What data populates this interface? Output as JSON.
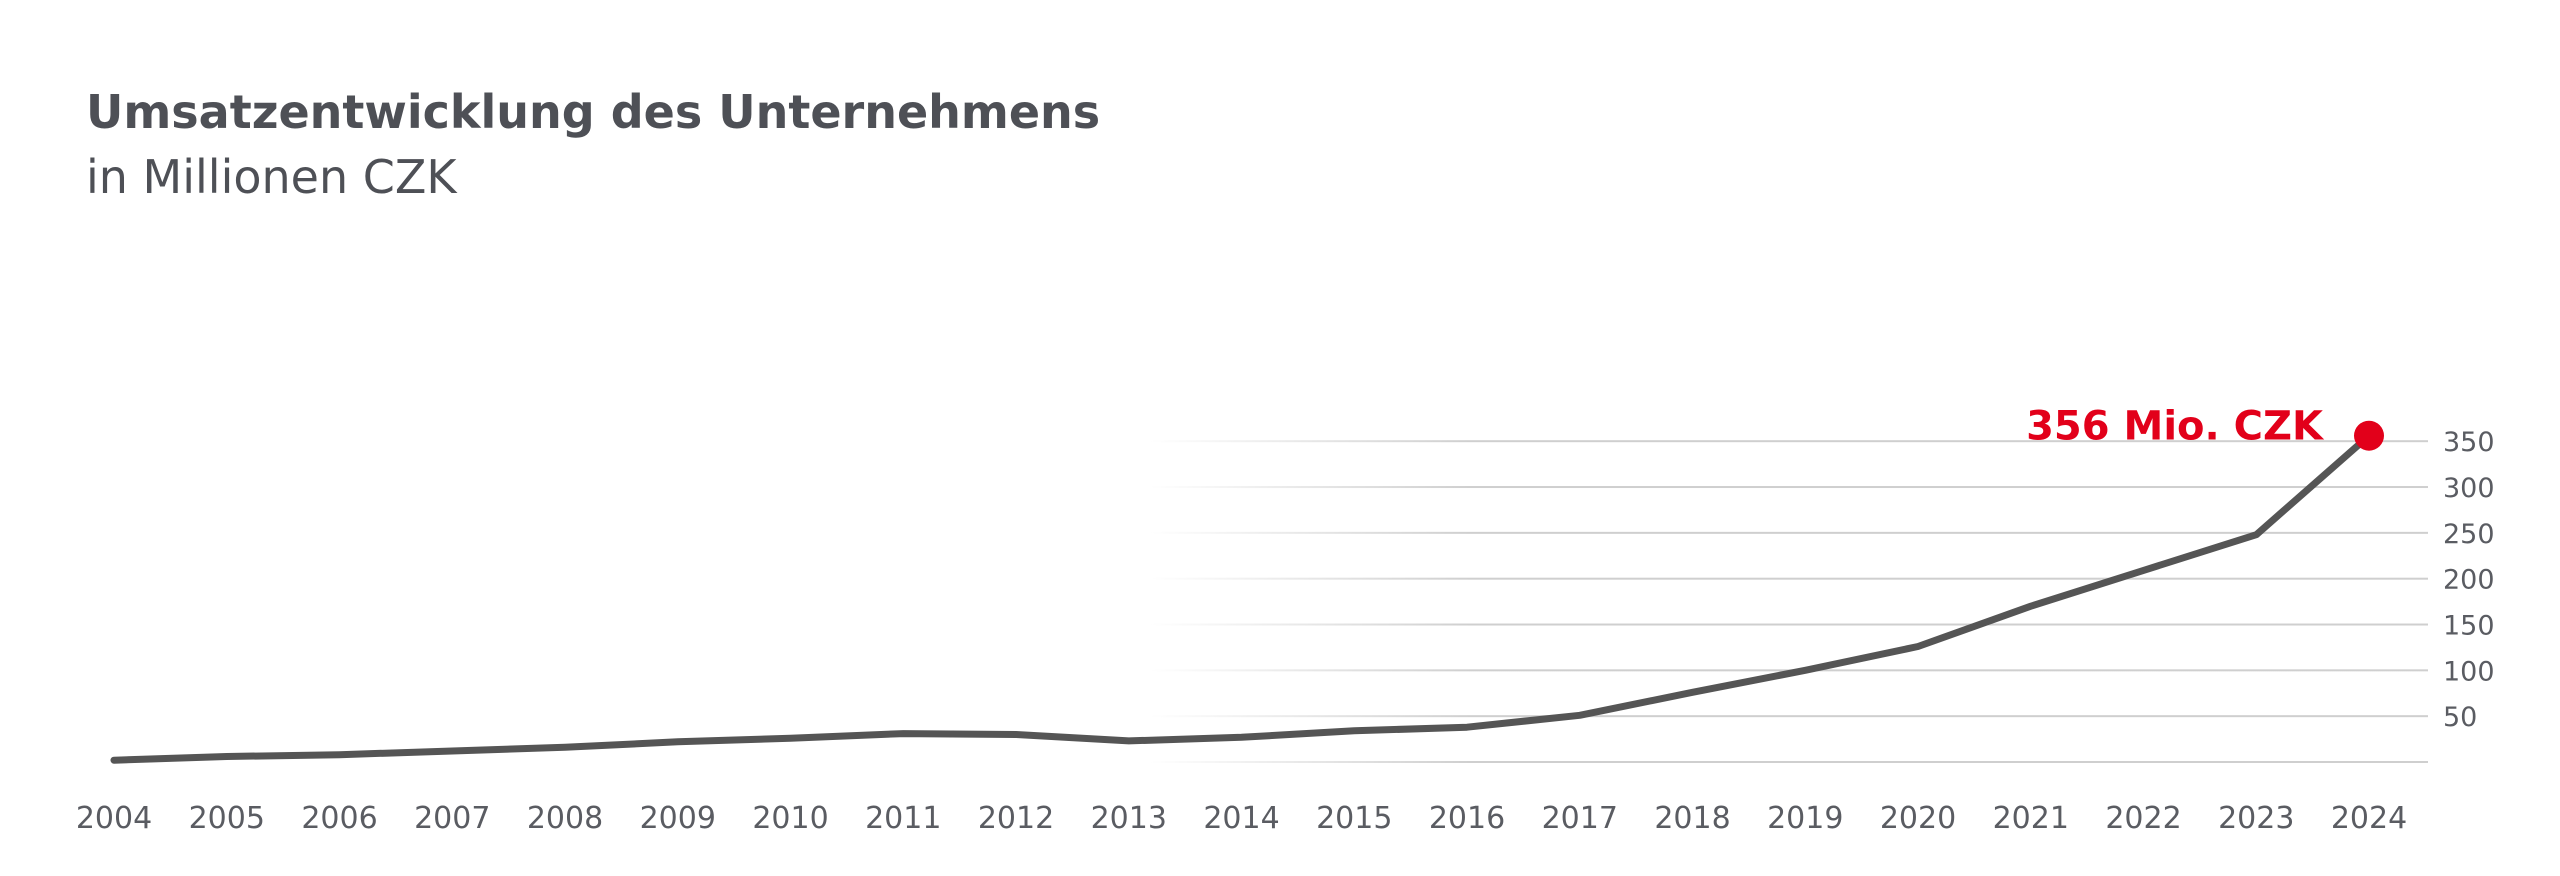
{
  "chart_data": {
    "type": "line",
    "title": "Umsatzentwicklung des Unternehmens",
    "subtitle": "in Millionen CZK",
    "x": [
      "2004",
      "2005",
      "2006",
      "2007",
      "2008",
      "2009",
      "2010",
      "2011",
      "2012",
      "2013",
      "2014",
      "2015",
      "2016",
      "2017",
      "2018",
      "2019",
      "2020",
      "2021",
      "2022",
      "2023",
      "2024"
    ],
    "values": [
      2,
      6,
      8,
      12,
      16,
      22,
      26,
      31,
      30,
      23,
      27,
      34,
      38,
      51,
      76,
      100,
      126,
      170,
      209,
      248,
      356
    ],
    "ylim": [
      0,
      356
    ],
    "yticks": [
      "50",
      "100",
      "150",
      "200",
      "250",
      "300",
      "350"
    ],
    "grid": true,
    "annotation": {
      "text": "356 Mio. CZK",
      "year": "2024",
      "value": 356
    },
    "colors": {
      "line": "#555555",
      "highlight": "#e2001a",
      "grid": "#cfcfcf",
      "text": "#4e5056"
    }
  }
}
